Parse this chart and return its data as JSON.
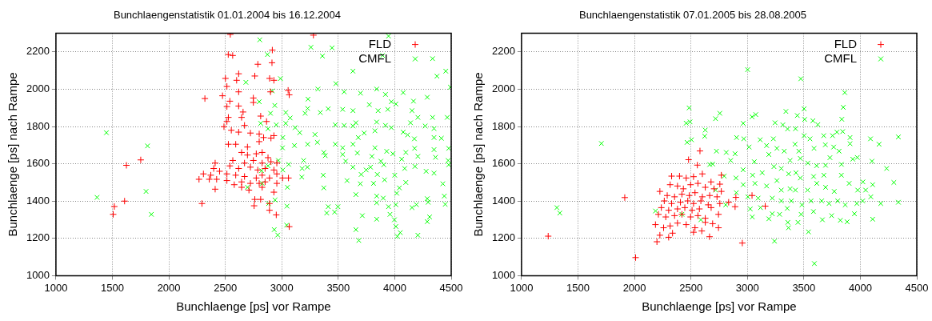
{
  "chart_data": [
    {
      "type": "scatter",
      "title": "Bunchlaengenstatistik 01.01.2004 bis 16.12.2004",
      "xlabel": "Bunchlaenge [ps] vor Rampe",
      "ylabel": "Bunchlaenge [ps] nach Rampe",
      "xlim": [
        1000,
        4500
      ],
      "ylim": [
        1000,
        2300
      ],
      "xticks": [
        1000,
        1500,
        2000,
        2500,
        3000,
        3500,
        4000,
        4500
      ],
      "yticks": [
        1000,
        1200,
        1400,
        1600,
        1800,
        2000,
        2200
      ],
      "grid": true,
      "legend": "top right",
      "series": [
        {
          "name": "FLD",
          "color": "#ff0000",
          "marker": "cross",
          "x": [
            2544,
            3280,
            2526,
            2565,
            2916,
            2788,
            2913,
            2618,
            2501,
            2600,
            2514,
            2618,
            2761,
            2892,
            2930,
            2900,
            3056,
            3066,
            2319,
            2475,
            2540,
            2514,
            2618,
            2748,
            2748,
            2657,
            2527,
            2644,
            2813,
            2865,
            2514,
            2670,
            2488,
            2553,
            2618,
            2722,
            2800,
            2930,
            2839,
            2904,
            2527,
            2592,
            2696,
            2800,
            2644,
            2696,
            2774,
            2826,
            2878,
            2566,
            2670,
            2748,
            2826,
            2904,
            2956,
            2540,
            2618,
            2722,
            2787,
            2852,
            2930,
            2410,
            2397,
            2449,
            2306,
            2371,
            2267,
            2358,
            2514,
            2592,
            2670,
            2774,
            2826,
            2891,
            2956,
            3007,
            3059,
            2514,
            2644,
            2722,
            2800,
            2852,
            2956,
            2423,
            2579,
            2410,
            2644,
            2709,
            2826,
            2930,
            2293,
            2761,
            2813,
            2755,
            2891,
            2891,
            2951,
            3066,
            1751,
            1624,
            1608,
            1517,
            1507
          ],
          "values": [
            2294,
            2290,
            2186,
            2181,
            2210,
            2134,
            2142,
            2083,
            2058,
            2048,
            2015,
            1986,
            2071,
            2058,
            2048,
            1986,
            1994,
            1970,
            1950,
            1965,
            1936,
            1907,
            1910,
            1953,
            1929,
            1878,
            1849,
            1849,
            1856,
            1827,
            1827,
            1806,
            1799,
            1780,
            1770,
            1765,
            1760,
            1751,
            1741,
            1738,
            1705,
            1705,
            1690,
            1719,
            1661,
            1647,
            1654,
            1661,
            1633,
            1618,
            1604,
            1618,
            1604,
            1611,
            1604,
            1589,
            1575,
            1582,
            1567,
            1575,
            1567,
            1604,
            1575,
            1560,
            1546,
            1539,
            1517,
            1517,
            1546,
            1539,
            1532,
            1524,
            1539,
            1524,
            1546,
            1524,
            1524,
            1510,
            1503,
            1495,
            1495,
            1503,
            1495,
            1517,
            1488,
            1464,
            1474,
            1459,
            1474,
            1448,
            1387,
            1409,
            1409,
            1375,
            1387,
            1351,
            1326,
            1263,
            1621,
            1592,
            1400,
            1371,
            1329
          ]
        },
        {
          "name": "CMFL",
          "color": "#00ff00",
          "marker": "x",
          "x": [
            1447,
            1811,
            1798,
            1364,
            1845,
            2805,
            2873,
            3258,
            3445,
            3360,
            3945,
            3893,
            4335,
            4452,
            4374,
            4493,
            3630,
            3479,
            2988,
            2682,
            2915,
            2800,
            2938,
            3232,
            3229,
            3206,
            3320,
            3411,
            3341,
            3035,
            3074,
            3035,
            3118,
            3159,
            3294,
            3315,
            3229,
            3112,
            3009,
            3006,
            2813,
            2878,
            2951,
            2900,
            3552,
            3697,
            3840,
            3918,
            4075,
            4166,
            4288,
            3970,
            3775,
            3539,
            3630,
            3853,
            3939,
            4010,
            4153,
            4205,
            4335,
            4465,
            3656,
            3474,
            3552,
            3840,
            3918,
            3970,
            4140,
            4270,
            4348,
            3630,
            3729,
            3825,
            4075,
            4114,
            4174,
            4348,
            4413,
            3677,
            3630,
            3474,
            3539,
            3825,
            3929,
            4098,
            4176,
            4348,
            4478,
            3372,
            3385,
            3539,
            3669,
            3798,
            3984,
            4062,
            4205,
            4361,
            4473,
            3565,
            3630,
            3747,
            3786,
            3877,
            3903,
            4088,
            4179,
            4278,
            4348,
            4478,
            3193,
            3180,
            3227,
            3061,
            2970,
            3009,
            3177,
            3367,
            3703,
            3846,
            4000,
            3578,
            3695,
            3812,
            3910,
            4098,
            3372,
            3656,
            3840,
            3898,
            4018,
            4041,
            4288,
            4439,
            4447,
            4426,
            3840,
            3945,
            4010,
            3958,
            4153,
            4192,
            4296,
            3411,
            3497,
            3398,
            3468,
            3713,
            3840,
            3997,
            4010,
            4049,
            4023,
            4205,
            4309,
            4288,
            3656,
            3682,
            3046,
            2883,
            2940,
            3043,
            2933,
            2964,
            3050,
            2826,
            2821,
            2878,
            2696
          ],
          "values": [
            1767,
            1696,
            1452,
            1420,
            1329,
            2265,
            2186,
            2225,
            2222,
            2178,
            2285,
            2181,
            2164,
            2097,
            2070,
            2011,
            2097,
            2030,
            2057,
            2037,
            1991,
            1933,
            1913,
            1947,
            1897,
            1871,
            2001,
            1895,
            1875,
            1875,
            1846,
            1817,
            1794,
            1767,
            1757,
            1715,
            1705,
            1698,
            1741,
            1686,
            1817,
            1788,
            1809,
            1871,
            1986,
            1979,
            2001,
            1972,
            1982,
            1936,
            1957,
            1933,
            1917,
            1892,
            1885,
            1885,
            1892,
            1921,
            1885,
            1849,
            1849,
            1849,
            1820,
            1809,
            1806,
            1824,
            1806,
            1794,
            1820,
            1803,
            1789,
            1803,
            1765,
            1777,
            1770,
            1755,
            1734,
            1741,
            1737,
            1741,
            1705,
            1705,
            1686,
            1686,
            1667,
            1661,
            1683,
            1676,
            1683,
            1661,
            1644,
            1650,
            1658,
            1640,
            1654,
            1625,
            1640,
            1635,
            1618,
            1614,
            1582,
            1567,
            1582,
            1614,
            1595,
            1575,
            1586,
            1560,
            1550,
            1595,
            1618,
            1575,
            1582,
            1597,
            1618,
            1567,
            1529,
            1539,
            1543,
            1543,
            1539,
            1510,
            1493,
            1495,
            1514,
            1500,
            1471,
            1435,
            1427,
            1416,
            1442,
            1471,
            1413,
            1427,
            1383,
            1493,
            1391,
            1370,
            1381,
            1329,
            1365,
            1381,
            1394,
            1370,
            1370,
            1336,
            1341,
            1322,
            1303,
            1300,
            1264,
            1231,
            1211,
            1217,
            1315,
            1290,
            1247,
            1189,
            1373,
            1387,
            1406,
            1271,
            1247,
            1218,
            1474,
            1495,
            1563,
            1589,
            1474
          ]
        }
      ]
    },
    {
      "type": "scatter",
      "title": "Bunchlaengenstatistik 07.01.2005 bis 28.08.2005",
      "xlabel": "Bunchlaenge [ps] vor Rampe",
      "ylabel": "Bunchlaenge [ps] nach Rampe",
      "xlim": [
        1000,
        4500
      ],
      "ylim": [
        1000,
        2300
      ],
      "xticks": [
        1000,
        1500,
        2000,
        2500,
        3000,
        3500,
        4000,
        4500
      ],
      "yticks": [
        1000,
        1200,
        1400,
        1600,
        1800,
        2000,
        2200
      ],
      "grid": true,
      "legend": "top right",
      "series": [
        {
          "name": "FLD",
          "color": "#ff0000",
          "marker": "cross",
          "x": [
            1236,
            1914,
            2010,
            2479,
            2557,
            2580,
            2199,
            2303,
            2665,
            2955,
            3041,
            3158,
            2898,
            2891,
            2329,
            2399,
            2458,
            2523,
            2601,
            2678,
            2769,
            2756,
            2225,
            2316,
            2381,
            2433,
            2497,
            2562,
            2627,
            2705,
            2769,
            2290,
            2355,
            2420,
            2485,
            2536,
            2601,
            2666,
            2731,
            2264,
            2329,
            2407,
            2472,
            2523,
            2588,
            2653,
            2756,
            2834,
            2238,
            2303,
            2381,
            2446,
            2510,
            2575,
            2679,
            2744,
            2212,
            2277,
            2355,
            2420,
            2497,
            2562,
            2627,
            2186,
            2258,
            2316,
            2381,
            2458,
            2536,
            2627,
            2692,
            2744,
            2523,
            2596,
            2225,
            2337
          ],
          "values": [
            1212,
            1419,
            1097,
            1622,
            1593,
            1669,
            1182,
            1206,
            1209,
            1175,
            1430,
            1373,
            1420,
            1370,
            1534,
            1534,
            1524,
            1531,
            1546,
            1503,
            1539,
            1491,
            1452,
            1488,
            1481,
            1466,
            1488,
            1495,
            1474,
            1466,
            1452,
            1430,
            1423,
            1437,
            1430,
            1445,
            1423,
            1430,
            1423,
            1401,
            1387,
            1394,
            1401,
            1387,
            1401,
            1380,
            1387,
            1394,
            1365,
            1351,
            1358,
            1365,
            1351,
            1358,
            1365,
            1329,
            1329,
            1315,
            1322,
            1329,
            1315,
            1322,
            1308,
            1274,
            1257,
            1267,
            1282,
            1274,
            1257,
            1286,
            1279,
            1257,
            1233,
            1240,
            1217,
            1228
          ]
        },
        {
          "name": "CMFL",
          "color": "#00ff00",
          "marker": "x",
          "x": [
            1313,
            1339,
            1707,
            2186,
            2588,
            2420,
            3002,
            3473,
            3862,
            3849,
            3836,
            3593,
            3240,
            3541,
            2484,
            2492,
            2458,
            2505,
            2466,
            2627,
            2622,
            2718,
            2756,
            2963,
            3041,
            3074,
            3341,
            3442,
            3502,
            3507,
            3580,
            3624,
            3245,
            3314,
            3356,
            3426,
            3502,
            3554,
            3676,
            3754,
            3793,
            3844,
            3909,
            4090,
            4166,
            4337,
            2904,
            2968,
            3015,
            3113,
            3170,
            3230,
            3261,
            3326,
            3422,
            3456,
            3590,
            3690,
            3764,
            3812,
            3909,
            2726,
            2813,
            2891,
            2852,
            2666,
            2692,
            3061,
            3190,
            3235,
            3300,
            3378,
            3469,
            3535,
            3613,
            3692,
            3731,
            3833,
            3933,
            3973,
            4103,
            4233,
            2962,
            3046,
            3131,
            3261,
            3365,
            3430,
            3469,
            3586,
            3677,
            3832,
            3901,
            4023,
            4109,
            4297,
            2795,
            2899,
            2963,
            3067,
            3170,
            3300,
            3378,
            3425,
            3533,
            3614,
            3692,
            3769,
            3977,
            4047,
            4093,
            2718,
            2902,
            3004,
            3095,
            3220,
            3300,
            3389,
            3483,
            3563,
            3658,
            3723,
            3800,
            3866,
            3969,
            4021,
            4181,
            4337,
            2808,
            3025,
            3116,
            3220,
            3285,
            3353,
            3476,
            3585,
            3664,
            3746,
            3823,
            3883,
            3948,
            4109,
            3043,
            3190,
            3358,
            3364,
            3448
          ],
          "values": [
            1365,
            1336,
            1709,
            1347,
            1300,
            1329,
            2105,
            2056,
            1982,
            1903,
            1839,
            1065,
            1185,
            1235,
            1900,
            1825,
            1818,
            1729,
            1715,
            1781,
            1748,
            1842,
            1871,
            1817,
            1852,
            1864,
            1881,
            1859,
            1895,
            1838,
            1831,
            1810,
            1820,
            1809,
            1787,
            1788,
            1751,
            1734,
            1751,
            1751,
            1770,
            1773,
            1741,
            1734,
            1705,
            1744,
            1741,
            1734,
            1690,
            1729,
            1698,
            1734,
            1683,
            1668,
            1705,
            1668,
            1683,
            1702,
            1690,
            1668,
            1708,
            1668,
            1661,
            1654,
            1618,
            1596,
            1599,
            1611,
            1650,
            1585,
            1575,
            1618,
            1629,
            1604,
            1590,
            1592,
            1633,
            1597,
            1625,
            1634,
            1614,
            1575,
            1568,
            1539,
            1552,
            1510,
            1546,
            1552,
            1524,
            1532,
            1539,
            1539,
            1495,
            1503,
            1488,
            1500,
            1534,
            1524,
            1488,
            1495,
            1481,
            1459,
            1466,
            1459,
            1459,
            1495,
            1474,
            1452,
            1459,
            1459,
            1423,
            1459,
            1445,
            1423,
            1416,
            1416,
            1401,
            1401,
            1380,
            1401,
            1401,
            1387,
            1401,
            1380,
            1387,
            1401,
            1387,
            1394,
            1380,
            1358,
            1365,
            1332,
            1329,
            1361,
            1329,
            1344,
            1300,
            1322,
            1297,
            1289,
            1332,
            1303,
            1315,
            1305,
            1286,
            1257,
            1286
          ]
        }
      ]
    }
  ]
}
